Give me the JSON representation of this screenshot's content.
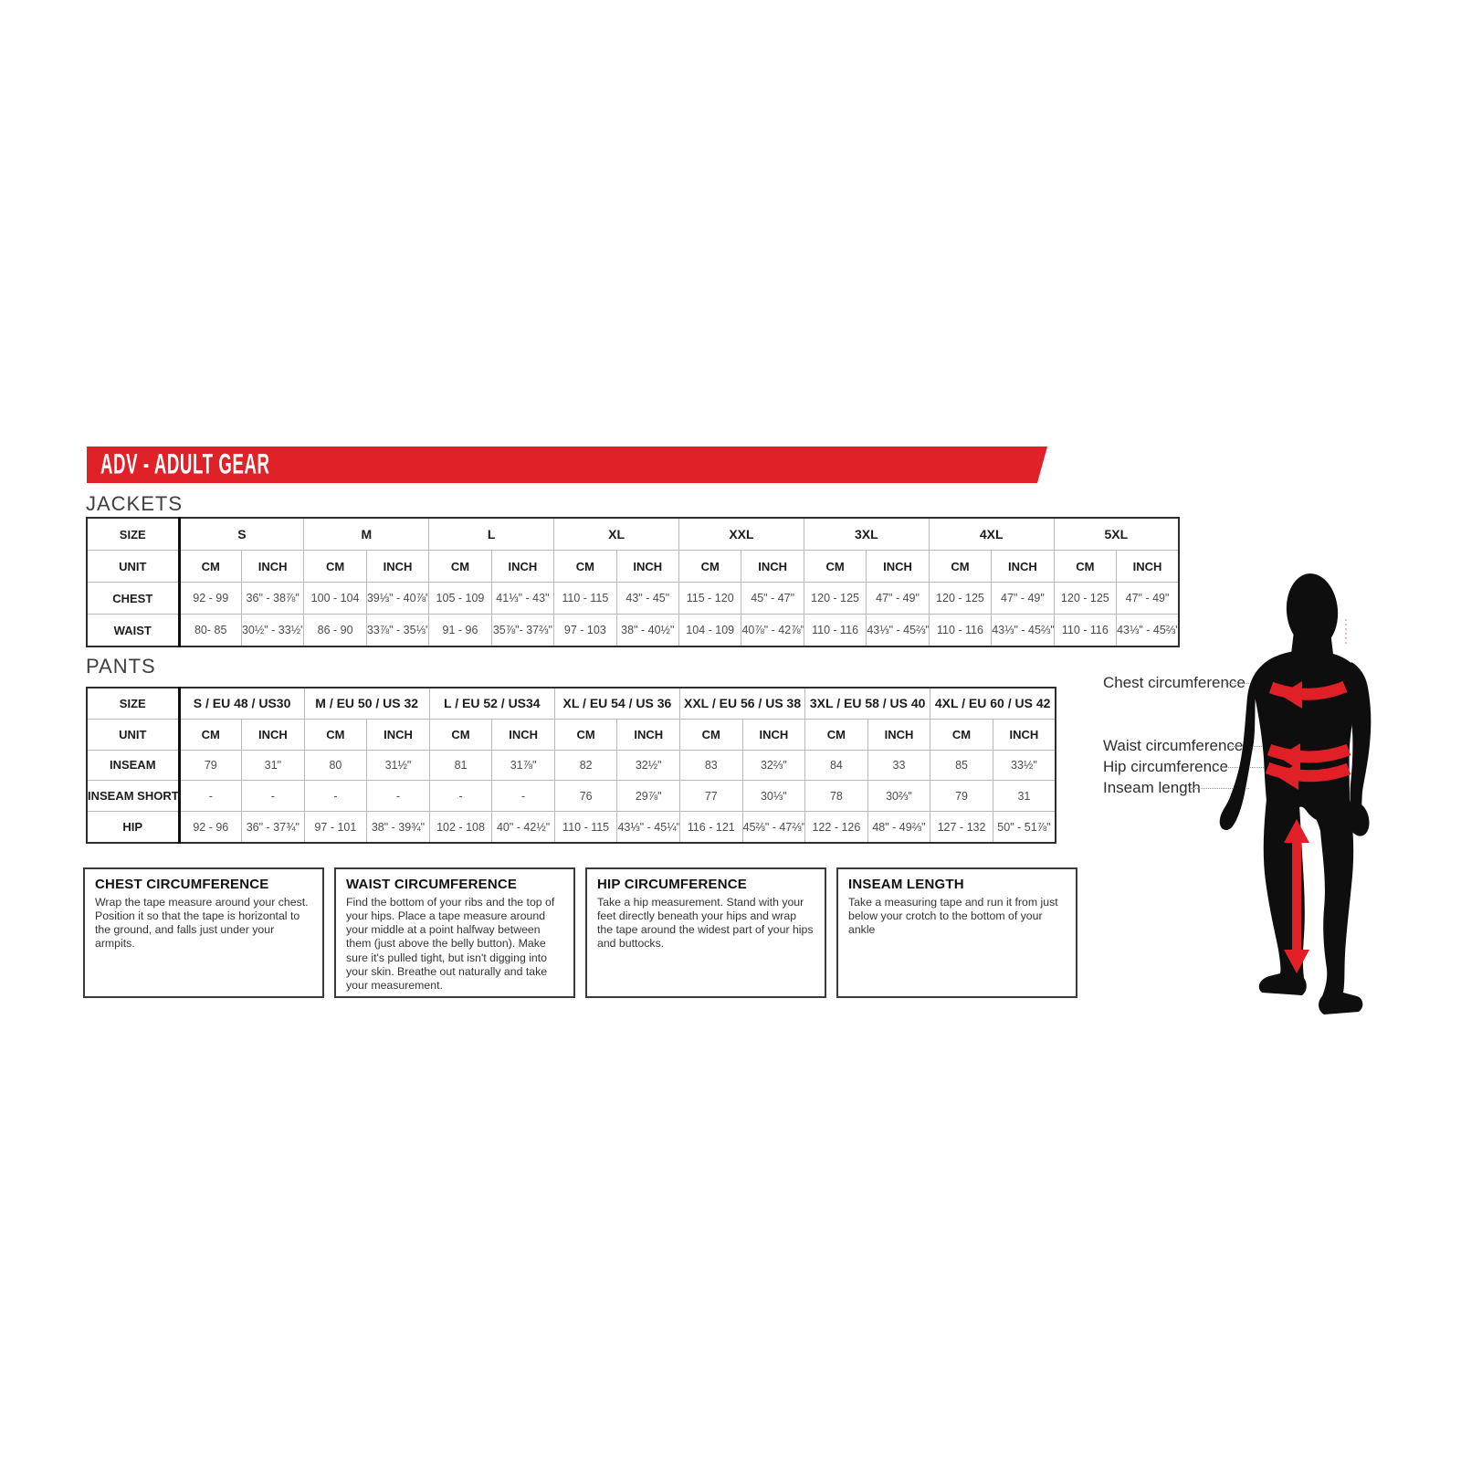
{
  "banner": {
    "title": "ADV - ADULT GEAR"
  },
  "colors": {
    "accent_red": "#e02128",
    "silhouette": "#0e0e0e"
  },
  "jackets": {
    "section_label": "JACKETS",
    "col_headers": {
      "size": "SIZE",
      "unit": "UNIT",
      "cm": "CM",
      "inch": "INCH"
    },
    "sizes": [
      "S",
      "M",
      "L",
      "XL",
      "XXL",
      "3XL",
      "4XL",
      "5XL"
    ],
    "rows": [
      {
        "label": "CHEST",
        "cells": [
          [
            "92 - 99",
            "36\" - 38⅞\""
          ],
          [
            "100 - 104",
            "39⅓\" - 40⅞\""
          ],
          [
            "105 - 109",
            "41⅓\" - 43\""
          ],
          [
            "110 - 115",
            "43\" - 45\""
          ],
          [
            "115 - 120",
            "45\" - 47\""
          ],
          [
            "120 - 125",
            "47\" - 49\""
          ],
          [
            "120 - 125",
            "47\" - 49\""
          ],
          [
            "120 - 125",
            "47\" - 49\""
          ]
        ]
      },
      {
        "label": "WAIST",
        "cells": [
          [
            "80- 85",
            "30½\" - 33½\""
          ],
          [
            "86 - 90",
            "33⅞\" - 35⅓\""
          ],
          [
            "91 - 96",
            "35⅞\"- 37⅔\""
          ],
          [
            "97 - 103",
            "38\" - 40½\""
          ],
          [
            "104 - 109",
            "40⅞\" - 42⅞\""
          ],
          [
            "110 - 116",
            "43⅓\" - 45⅔\""
          ],
          [
            "110 - 116",
            "43⅓\" - 45⅔\""
          ],
          [
            "110 - 116",
            "43⅓\" - 45⅔\""
          ]
        ]
      }
    ]
  },
  "pants": {
    "section_label": "PANTS",
    "col_headers": {
      "size": "SIZE",
      "unit": "UNIT",
      "cm": "CM",
      "inch": "INCH"
    },
    "sizes": [
      "S / EU 48 / US30",
      "M / EU 50 / US 32",
      "L / EU 52 / US34",
      "XL / EU 54 / US 36",
      "XXL / EU 56 / US 38",
      "3XL / EU 58 / US 40",
      "4XL / EU 60 / US 42"
    ],
    "rows": [
      {
        "label": "INSEAM",
        "cells": [
          [
            "79",
            "31\""
          ],
          [
            "80",
            "31½\""
          ],
          [
            "81",
            "31⅞\""
          ],
          [
            "82",
            "32½\""
          ],
          [
            "83",
            "32⅔\""
          ],
          [
            "84",
            "33"
          ],
          [
            "85",
            "33½\""
          ]
        ]
      },
      {
        "label": "INSEAM SHORT",
        "cells": [
          [
            "-",
            "-"
          ],
          [
            "-",
            "-"
          ],
          [
            "-",
            "-"
          ],
          [
            "76",
            "29⅞\""
          ],
          [
            "77",
            "30⅓\""
          ],
          [
            "78",
            "30⅔\""
          ],
          [
            "79",
            "31"
          ]
        ]
      },
      {
        "label": "HIP",
        "cells": [
          [
            "92 - 96",
            "36\" - 37¾\""
          ],
          [
            "97 - 101",
            "38\" - 39¾\""
          ],
          [
            "102 - 108",
            "40\" - 42½\""
          ],
          [
            "110 - 115",
            "43⅓\" - 45¼\""
          ],
          [
            "116 - 121",
            "45⅔\" - 47⅔\""
          ],
          [
            "122 - 126",
            "48\" - 49⅔\""
          ],
          [
            "127 - 132",
            "50\" - 51⅞\""
          ]
        ]
      }
    ]
  },
  "instructions": [
    {
      "title": "CHEST CIRCUMFERENCE",
      "body": "Wrap the tape measure around your chest. Position it so that the tape is horizontal to the ground, and falls just under your armpits."
    },
    {
      "title": "WAIST CIRCUMFERENCE",
      "body": "Find the bottom of your ribs and the top of your hips. Place a tape measure around your middle at a point halfway between them (just above the belly button). Make sure it's pulled tight, but isn't digging into your skin. Breathe out naturally and take your measurement."
    },
    {
      "title": "HIP CIRCUMFERENCE",
      "body": "Take a hip measurement. Stand with your feet directly beneath your hips and wrap the tape around the widest part of your hips and buttocks."
    },
    {
      "title": "INSEAM LENGTH",
      "body": "Take a measuring tape and run it from just below your crotch to the bottom of your ankle"
    }
  ],
  "figure": {
    "labels": [
      {
        "text": "Chest circumference"
      },
      {
        "text": "Waist circumference"
      },
      {
        "text": "Hip circumference"
      },
      {
        "text": "Inseam length"
      }
    ]
  }
}
